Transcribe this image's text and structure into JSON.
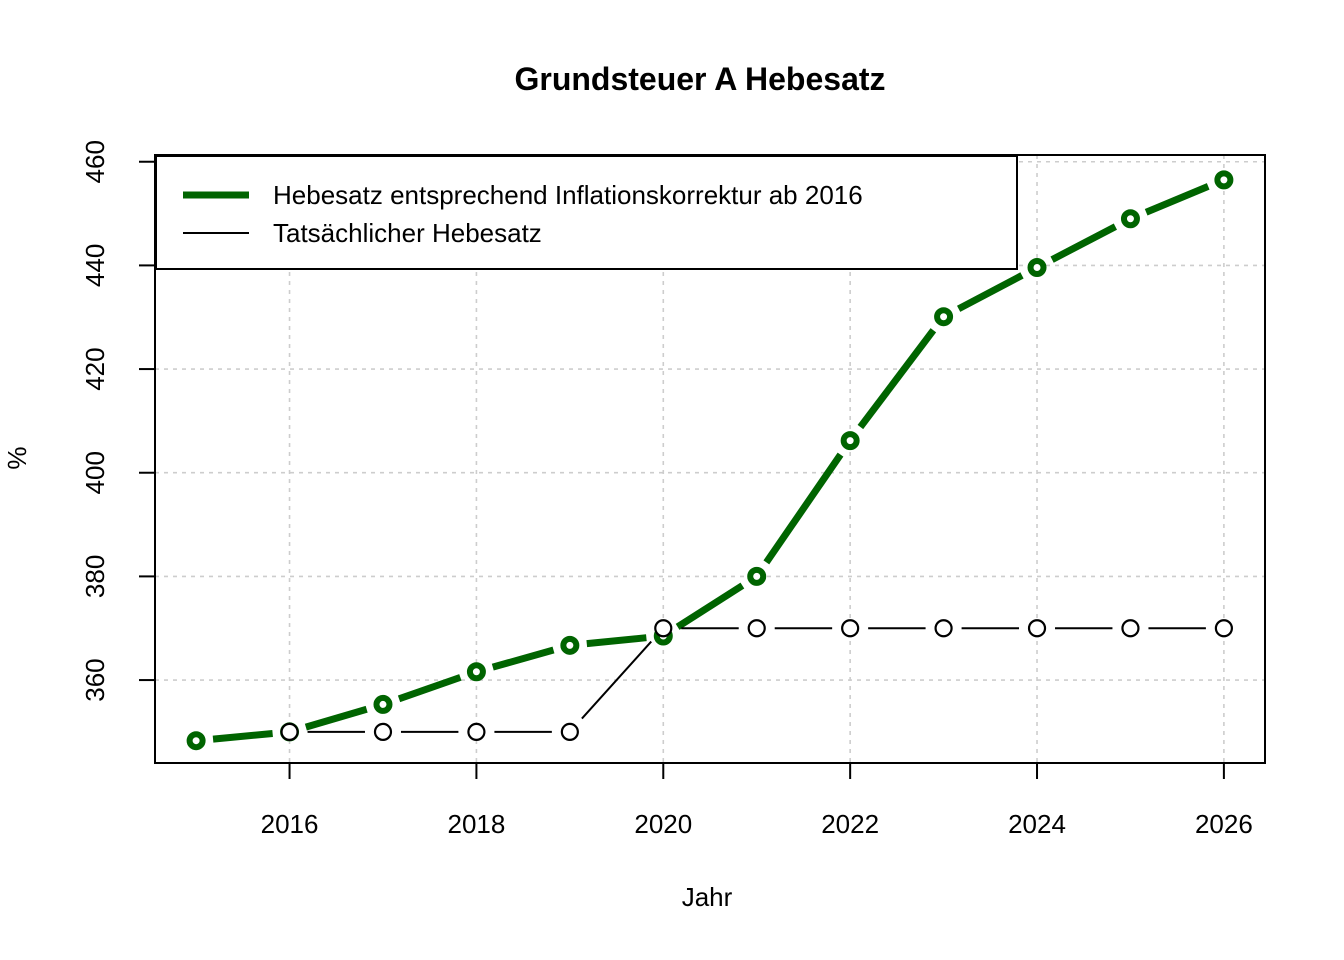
{
  "title": "Grundsteuer A Hebesatz",
  "axes": {
    "x_title": "Jahr",
    "y_title": "%"
  },
  "legend": {
    "entries": [
      {
        "label": "Hebesatz entsprechend Inflationskorrektur ab 2016",
        "color": "#006400",
        "line_width": 7
      },
      {
        "label": "Tatsächlicher Hebesatz",
        "color": "#000000",
        "line_width": 2
      }
    ]
  },
  "colors": {
    "series_green": "#006400",
    "series_black": "#000000",
    "grid": "#cdcdcd",
    "frame": "#000000",
    "background": "#ffffff"
  },
  "chart_data": {
    "type": "line",
    "title": "Grundsteuer A Hebesatz",
    "xlabel": "Jahr",
    "ylabel": "%",
    "xlim": [
      2014.56,
      2026.44
    ],
    "ylim": [
      344,
      461.3
    ],
    "x_ticks": [
      2016,
      2018,
      2020,
      2022,
      2024,
      2026
    ],
    "y_ticks": [
      360,
      380,
      400,
      420,
      440,
      460
    ],
    "grid": true,
    "legend_position": "topleft",
    "series": [
      {
        "name": "Hebesatz entsprechend Inflationskorrektur ab 2016",
        "color": "#006400",
        "line_width": 7,
        "marker": "open-circle",
        "marker_radius": 6.5,
        "marker_stroke": 6,
        "point_gap": 17,
        "x": [
          2015,
          2016,
          2017,
          2018,
          2019,
          2020,
          2021,
          2022,
          2023,
          2024,
          2025,
          2026
        ],
        "values": [
          348.3,
          350.0,
          355.3,
          361.6,
          366.7,
          368.5,
          380.0,
          406.2,
          430.1,
          439.6,
          449.0,
          456.5
        ]
      },
      {
        "name": "Tatsächlicher Hebesatz",
        "color": "#000000",
        "line_width": 2,
        "marker": "open-circle",
        "marker_radius": 8,
        "marker_stroke": 2.2,
        "point_gap": 18,
        "x": [
          2016,
          2017,
          2018,
          2019,
          2020,
          2021,
          2022,
          2023,
          2024,
          2025,
          2026
        ],
        "values": [
          350,
          350,
          350,
          350,
          370,
          370,
          370,
          370,
          370,
          370,
          370
        ]
      }
    ]
  }
}
